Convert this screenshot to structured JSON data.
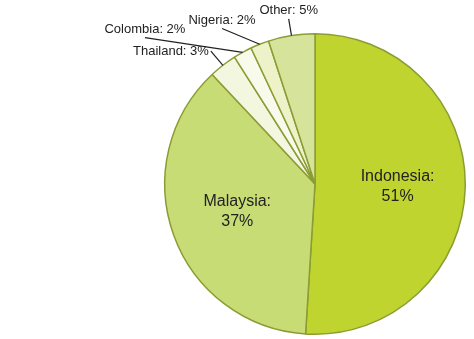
{
  "chart_data": {
    "type": "pie",
    "categories": [
      "Indonesia",
      "Malaysia",
      "Thailand",
      "Colombia",
      "Nigeria",
      "Other"
    ],
    "values": [
      51,
      37,
      3,
      2,
      2,
      5
    ],
    "value_labels": [
      "Indonesia: 51%",
      "Malaysia: 37%",
      "Thailand: 3%",
      "Colombia: 2%",
      "Nigeria: 2%",
      "Other: 5%"
    ],
    "colors": [
      "#c0d42f",
      "#c8dc76",
      "#f4f7e0",
      "#f8faec",
      "#edf2c8",
      "#d5e49a"
    ],
    "data_labels": true
  }
}
